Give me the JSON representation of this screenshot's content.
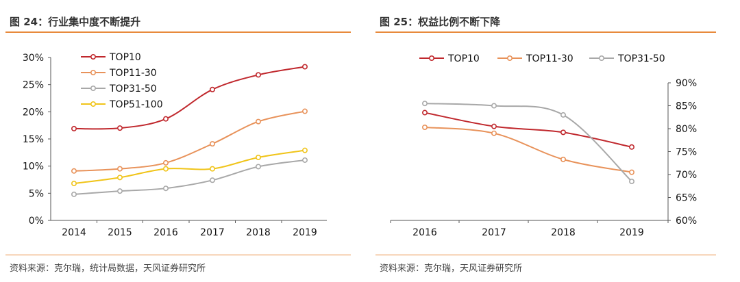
{
  "charts": [
    {
      "title": "图 24：行业集中度不断提升",
      "source": "资料来源：克尔瑞，统计局数据，天风证券研究所"
    },
    {
      "title": "图 25：权益比例不断下降",
      "source": "资料来源：克尔瑞，天风证券研究所"
    }
  ],
  "chart_data": [
    {
      "type": "line",
      "title": "图 24：行业集中度不断提升",
      "x": [
        "2014",
        "2015",
        "2016",
        "2017",
        "2018",
        "2019"
      ],
      "y_ticks": [
        "0%",
        "5%",
        "10%",
        "15%",
        "20%",
        "25%",
        "30%"
      ],
      "ylim": [
        0,
        30
      ],
      "y_unit": "%",
      "legend_position": "top-left",
      "grid": false,
      "series": [
        {
          "name": "TOP10",
          "color": "#c0282d",
          "values": [
            16.9,
            17.0,
            18.7,
            24.1,
            26.8,
            28.3
          ]
        },
        {
          "name": "TOP11-30",
          "color": "#e8925a",
          "values": [
            9.1,
            9.5,
            10.6,
            14.1,
            18.2,
            20.1
          ]
        },
        {
          "name": "TOP31-50",
          "color": "#a8a8a8",
          "values": [
            4.8,
            5.4,
            5.9,
            7.4,
            9.9,
            11.1
          ]
        },
        {
          "name": "TOP51-100",
          "color": "#f0c419",
          "values": [
            6.8,
            7.9,
            9.5,
            9.5,
            11.6,
            12.9
          ]
        }
      ]
    },
    {
      "type": "line",
      "title": "图 25：权益比例不断下降",
      "x": [
        "2016",
        "2017",
        "2018",
        "2019"
      ],
      "y_ticks": [
        "60%",
        "65%",
        "70%",
        "75%",
        "80%",
        "85%",
        "90%"
      ],
      "ylim": [
        60,
        90
      ],
      "y_unit": "%",
      "y_axis_side": "right",
      "legend_position": "top",
      "grid": false,
      "series": [
        {
          "name": "TOP10",
          "color": "#c0282d",
          "values": [
            83.5,
            80.5,
            79.2,
            76.0
          ]
        },
        {
          "name": "TOP11-30",
          "color": "#e8925a",
          "values": [
            80.3,
            79.0,
            73.3,
            70.5
          ]
        },
        {
          "name": "TOP31-50",
          "color": "#a8a8a8",
          "values": [
            85.5,
            85.0,
            83.0,
            68.5
          ]
        }
      ]
    }
  ]
}
